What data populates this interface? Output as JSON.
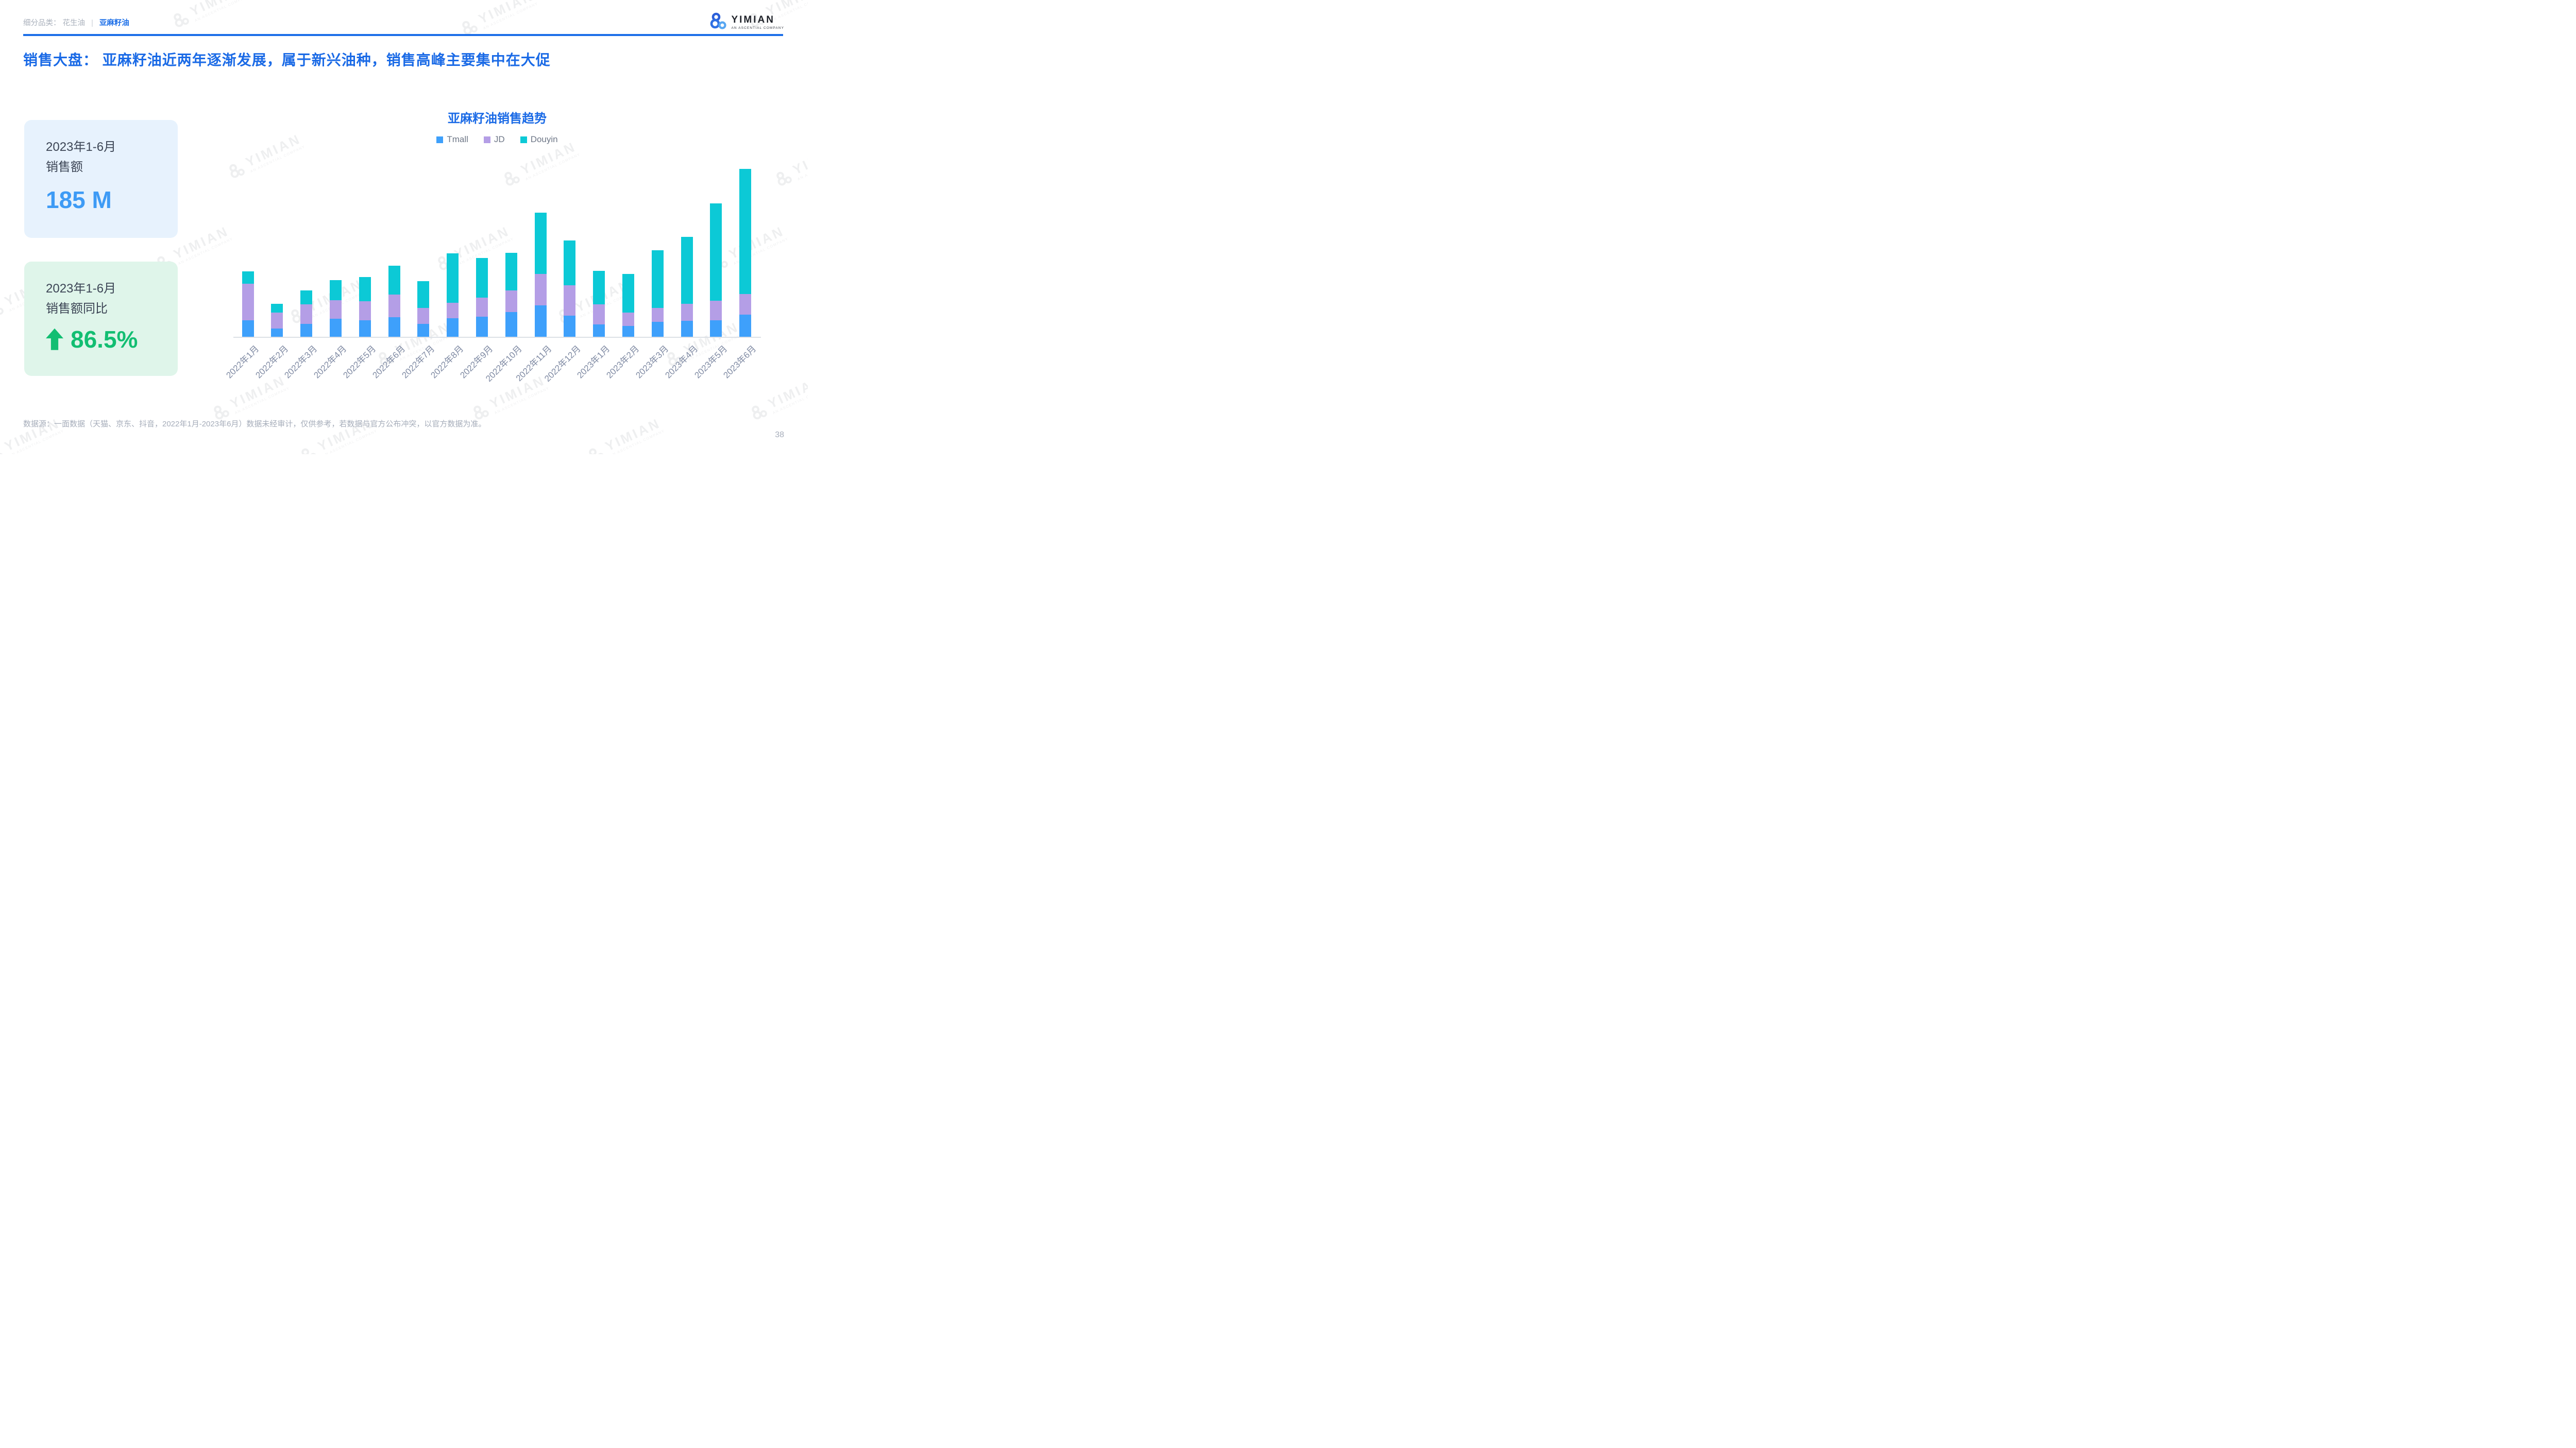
{
  "page": {
    "number": "38"
  },
  "header": {
    "breadcrumb": {
      "prefix": "细分品类：",
      "separator": "|",
      "items": [
        {
          "label": "花生油",
          "active": false
        },
        {
          "label": "亚麻籽油",
          "active": true
        }
      ]
    },
    "logo": {
      "name": "YIMIAN",
      "subtitle": "AN ASCENTIAL COMPANY"
    }
  },
  "title": "销售大盘： 亚麻籽油近两年逐渐发展，属于新兴油种，销售高峰主要集中在大促",
  "cards": [
    {
      "line1": "2023年1-6月",
      "line2": "销售额",
      "value": "185 M"
    },
    {
      "line1": "2023年1-6月",
      "line2": "销售额同比",
      "value": "86.5%",
      "direction": "up"
    }
  ],
  "footer": {
    "source": "数据源：一面数据（天猫、京东、抖音，2022年1月-2023年6月）数据未经审计，仅供参考，若数据与官方公布冲突，以官方数据为准。"
  },
  "watermark": {
    "text": "YIMIAN",
    "subtext": "AN ASCENTIAL COMPANY"
  },
  "colors": {
    "brand_blue": "#1a6ae6",
    "rule_blue": "#1d6fe8",
    "kpi_value_blue": "#3e9bf5",
    "kpi_value_green": "#12be72",
    "card_blue_bg": "#e7f2fd",
    "card_green_bg": "#dff5ea",
    "tmall": "#3ea0fb",
    "jd": "#b49ee6",
    "douyin": "#0cc9d6"
  },
  "chart_data": {
    "type": "bar",
    "stacked": true,
    "title": "亚麻籽油销售趋势",
    "legend_position": "top",
    "y_axis_visible": false,
    "grid": false,
    "units": "M",
    "values_estimated": true,
    "categories": [
      "2022年1月",
      "2022年2月",
      "2022年3月",
      "2022年4月",
      "2022年5月",
      "2022年6月",
      "2022年7月",
      "2022年8月",
      "2022年9月",
      "2022年10月",
      "2022年11月",
      "2022年12月",
      "2023年1月",
      "2023年2月",
      "2023年3月",
      "2023年4月",
      "2023年5月",
      "2023年6月"
    ],
    "series": [
      {
        "name": "Tmall",
        "color": "#3ea0fb",
        "values": [
          5.0,
          2.4,
          3.9,
          5.4,
          5.0,
          5.9,
          3.8,
          5.5,
          6.0,
          7.4,
          9.4,
          6.4,
          3.7,
          3.2,
          4.5,
          4.8,
          5.0,
          6.7
        ]
      },
      {
        "name": "JD",
        "color": "#b49ee6",
        "values": [
          10.8,
          4.8,
          5.8,
          5.6,
          5.7,
          6.7,
          4.9,
          4.7,
          5.7,
          6.5,
          9.4,
          9.0,
          6.0,
          4.1,
          4.1,
          5.0,
          5.8,
          6.1
        ]
      },
      {
        "name": "Douyin",
        "color": "#0cc9d6",
        "values": [
          3.8,
          2.6,
          4.2,
          5.9,
          7.2,
          8.6,
          7.9,
          14.8,
          11.9,
          11.2,
          18.3,
          13.4,
          10.1,
          11.5,
          17.3,
          20.1,
          29.1,
          37.5
        ]
      }
    ],
    "totals_note": "2023年1-6月合计 = 185 M，同比 +86.5%"
  }
}
